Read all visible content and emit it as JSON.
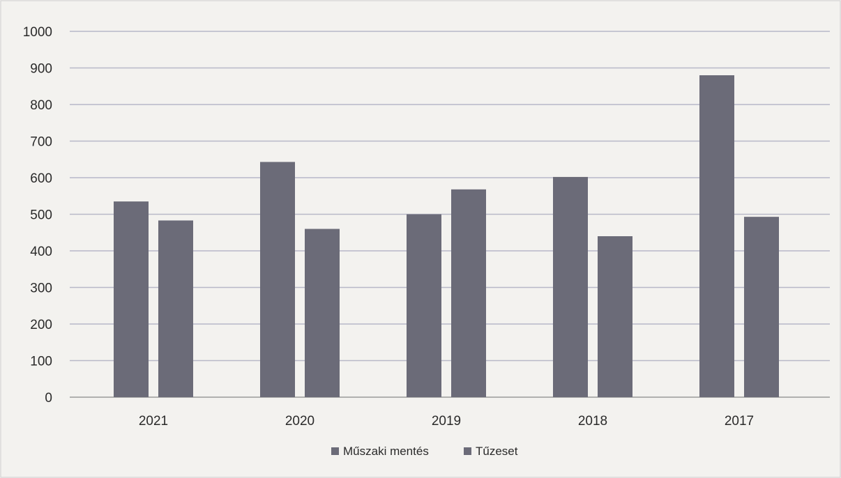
{
  "chart_data": {
    "type": "bar",
    "categories": [
      "2021",
      "2020",
      "2019",
      "2018",
      "2017"
    ],
    "series": [
      {
        "name": "Műszaki mentés",
        "values": [
          535,
          643,
          500,
          602,
          880
        ],
        "color": "#6b6b78"
      },
      {
        "name": "Tűzeset",
        "values": [
          483,
          460,
          568,
          440,
          493
        ],
        "color": "#6b6b78"
      }
    ],
    "y_ticks": [
      "0",
      "100",
      "200",
      "300",
      "400",
      "500",
      "600",
      "700",
      "800",
      "900",
      "1000"
    ],
    "ylim": [
      0,
      1000
    ],
    "grid": true,
    "legend_position": "bottom",
    "title": "",
    "xlabel": "",
    "ylabel": ""
  }
}
